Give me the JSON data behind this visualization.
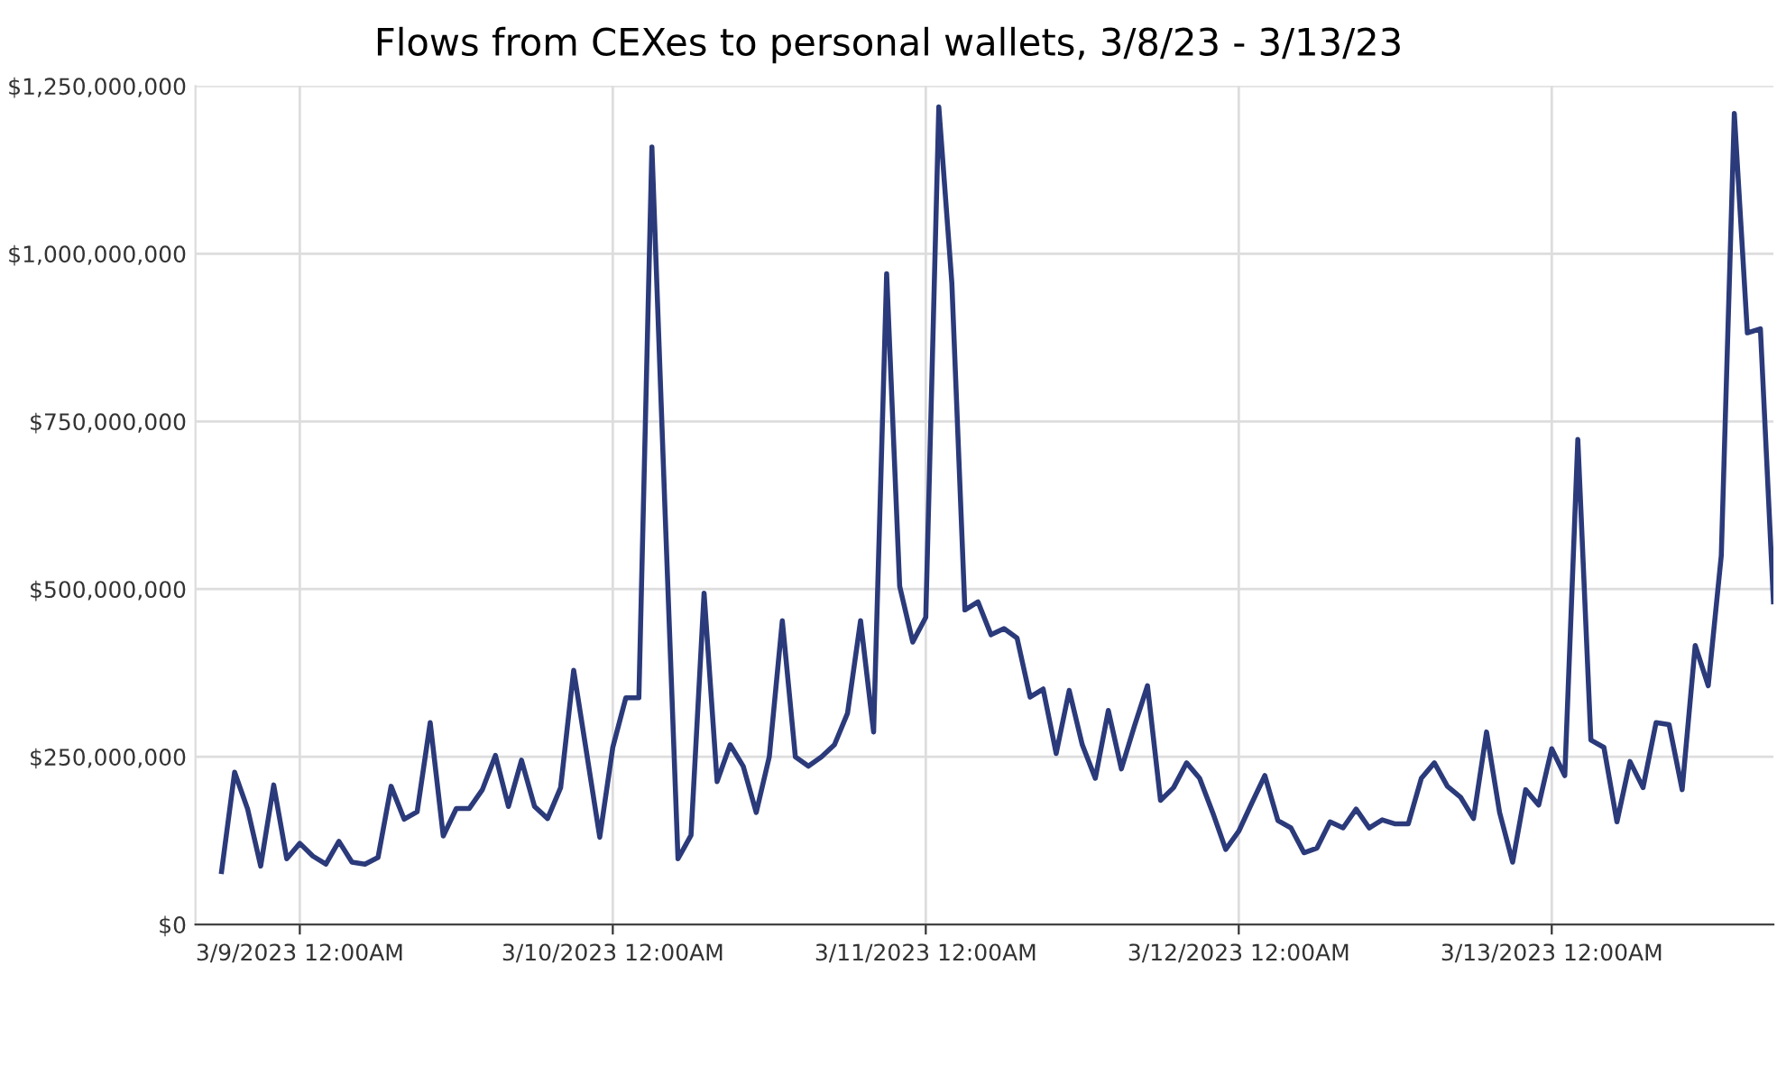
{
  "chart_data": {
    "type": "line",
    "title": "Flows from CEXes to personal wallets, 3/8/23 - 3/13/23",
    "x": [
      "2023-03-08T18:00",
      "2023-03-08T19:00",
      "2023-03-08T20:00",
      "2023-03-08T21:00",
      "2023-03-08T22:00",
      "2023-03-08T23:00",
      "2023-03-09T00:00",
      "2023-03-09T01:00",
      "2023-03-09T02:00",
      "2023-03-09T03:00",
      "2023-03-09T04:00",
      "2023-03-09T05:00",
      "2023-03-09T06:00",
      "2023-03-09T07:00",
      "2023-03-09T08:00",
      "2023-03-09T09:00",
      "2023-03-09T10:00",
      "2023-03-09T11:00",
      "2023-03-09T12:00",
      "2023-03-09T13:00",
      "2023-03-09T14:00",
      "2023-03-09T15:00",
      "2023-03-09T16:00",
      "2023-03-09T17:00",
      "2023-03-09T18:00",
      "2023-03-09T19:00",
      "2023-03-09T20:00",
      "2023-03-09T21:00",
      "2023-03-09T22:00",
      "2023-03-09T23:00",
      "2023-03-10T00:00",
      "2023-03-10T01:00",
      "2023-03-10T02:00",
      "2023-03-10T03:00",
      "2023-03-10T04:00",
      "2023-03-10T05:00",
      "2023-03-10T06:00",
      "2023-03-10T07:00",
      "2023-03-10T08:00",
      "2023-03-10T09:00",
      "2023-03-10T10:00",
      "2023-03-10T11:00",
      "2023-03-10T12:00",
      "2023-03-10T13:00",
      "2023-03-10T14:00",
      "2023-03-10T15:00",
      "2023-03-10T16:00",
      "2023-03-10T17:00",
      "2023-03-10T18:00",
      "2023-03-10T19:00",
      "2023-03-10T20:00",
      "2023-03-10T21:00",
      "2023-03-10T22:00",
      "2023-03-10T23:00",
      "2023-03-11T00:00",
      "2023-03-11T01:00",
      "2023-03-11T02:00",
      "2023-03-11T03:00",
      "2023-03-11T04:00",
      "2023-03-11T05:00",
      "2023-03-11T06:00",
      "2023-03-11T07:00",
      "2023-03-11T08:00",
      "2023-03-11T09:00",
      "2023-03-11T10:00",
      "2023-03-11T11:00",
      "2023-03-11T12:00",
      "2023-03-11T13:00",
      "2023-03-11T14:00",
      "2023-03-11T15:00",
      "2023-03-11T16:00",
      "2023-03-11T17:00",
      "2023-03-11T18:00",
      "2023-03-11T19:00",
      "2023-03-11T20:00",
      "2023-03-11T21:00",
      "2023-03-11T22:00",
      "2023-03-11T23:00",
      "2023-03-12T00:00",
      "2023-03-12T01:00",
      "2023-03-12T02:00",
      "2023-03-12T03:00",
      "2023-03-12T04:00",
      "2023-03-12T05:00",
      "2023-03-12T06:00",
      "2023-03-12T07:00",
      "2023-03-12T08:00",
      "2023-03-12T09:00",
      "2023-03-12T10:00",
      "2023-03-12T11:00",
      "2023-03-12T12:00",
      "2023-03-12T13:00",
      "2023-03-12T14:00",
      "2023-03-12T15:00",
      "2023-03-12T16:00",
      "2023-03-12T17:00",
      "2023-03-12T18:00",
      "2023-03-12T19:00",
      "2023-03-12T20:00",
      "2023-03-12T21:00",
      "2023-03-12T22:00",
      "2023-03-12T23:00",
      "2023-03-13T00:00",
      "2023-03-13T01:00",
      "2023-03-13T02:00",
      "2023-03-13T03:00",
      "2023-03-13T04:00",
      "2023-03-13T05:00",
      "2023-03-13T06:00",
      "2023-03-13T07:00",
      "2023-03-13T08:00",
      "2023-03-13T09:00",
      "2023-03-13T10:00",
      "2023-03-13T11:00",
      "2023-03-13T12:00",
      "2023-03-13T13:00",
      "2023-03-13T14:00",
      "2023-03-13T15:00",
      "2023-03-13T16:00",
      "2023-03-13T17:00"
    ],
    "series": [
      {
        "color": "#2b3a7a",
        "values": [
          79000000,
          227000000,
          172000000,
          87000000,
          208000000,
          98000000,
          121000000,
          102000000,
          90000000,
          124000000,
          93000000,
          90000000,
          100000000,
          206000000,
          157000000,
          168000000,
          301000000,
          132000000,
          173000000,
          173000000,
          201000000,
          252000000,
          176000000,
          245000000,
          176000000,
          158000000,
          204000000,
          379000000,
          255000000,
          130000000,
          264000000,
          338000000,
          338000000,
          1159000000,
          620000000,
          98000000,
          133000000,
          494000000,
          213000000,
          268000000,
          236000000,
          167000000,
          250000000,
          453000000,
          250000000,
          236000000,
          250000000,
          268000000,
          315000000,
          453000000,
          287000000,
          970000000,
          504000000,
          421000000,
          458000000,
          1219000000,
          956000000,
          469000000,
          481000000,
          432000000,
          441000000,
          427000000,
          339000000,
          351000000,
          255000000,
          349000000,
          268000000,
          218000000,
          319000000,
          232000000,
          296000000,
          356000000,
          185000000,
          204000000,
          241000000,
          218000000,
          167000000,
          112000000,
          139000000,
          181000000,
          222000000,
          155000000,
          144000000,
          107000000,
          114000000,
          153000000,
          144000000,
          172000000,
          144000000,
          156000000,
          150000000,
          150000000,
          218000000,
          241000000,
          206000000,
          190000000,
          158000000,
          287000000,
          167000000,
          93000000,
          201000000,
          178000000,
          262000000,
          222000000,
          723000000,
          275000000,
          264000000,
          153000000,
          243000000,
          204000000,
          301000000,
          298000000,
          201000000,
          416000000,
          356000000,
          550000000,
          1209000000,
          882000000,
          888000000,
          481000000
        ]
      }
    ],
    "xlim": [
      "2023-03-08T16:00",
      "2023-03-13T17:00"
    ],
    "xticks": [
      {
        "value": "2023-03-09T00:00",
        "label": "3/9/2023 12:00AM"
      },
      {
        "value": "2023-03-10T00:00",
        "label": "3/10/2023 12:00AM"
      },
      {
        "value": "2023-03-11T00:00",
        "label": "3/11/2023 12:00AM"
      },
      {
        "value": "2023-03-12T00:00",
        "label": "3/12/2023 12:00AM"
      },
      {
        "value": "2023-03-13T00:00",
        "label": "3/13/2023 12:00AM"
      }
    ],
    "ylim": [
      0,
      1250000000
    ],
    "yticks": [
      {
        "value": 0,
        "label": "$0"
      },
      {
        "value": 250000000,
        "label": "$250,000,000"
      },
      {
        "value": 500000000,
        "label": "$500,000,000"
      },
      {
        "value": 750000000,
        "label": "$750,000,000"
      },
      {
        "value": 1000000000,
        "label": "$1,000,000,000"
      },
      {
        "value": 1250000000,
        "label": "$1,250,000,000"
      }
    ],
    "grid": true,
    "line_style": "solid",
    "marker": "none"
  }
}
